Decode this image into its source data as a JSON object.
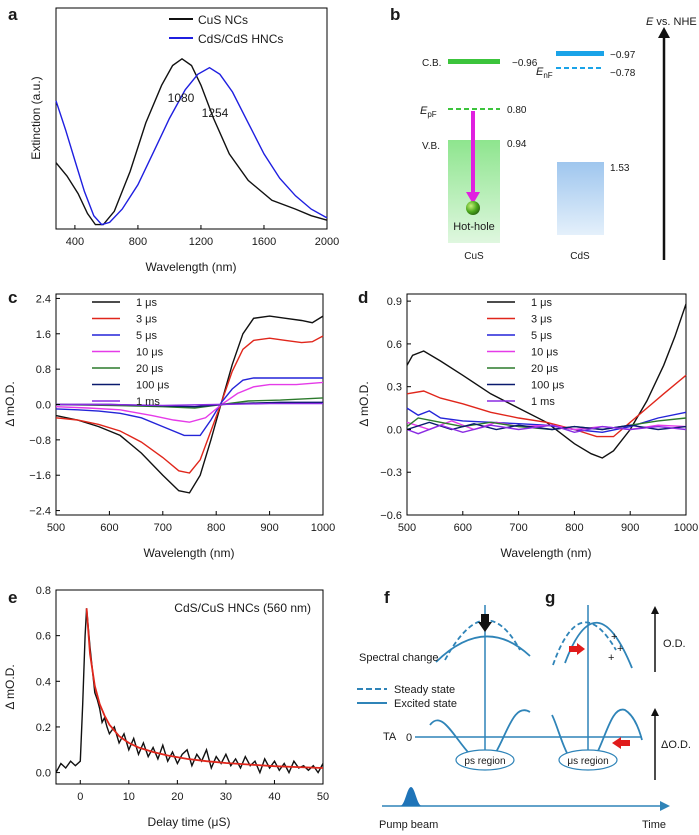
{
  "panels": {
    "a": {
      "letter": "a",
      "title": "",
      "xlabel": "Wavelength (nm)",
      "ylabel": "Extinction (a.u.)",
      "xticks": [
        "400",
        "800",
        "1200",
        "1600",
        "2000"
      ],
      "peak_labels": [
        "1080",
        "1254"
      ],
      "legend": [
        "CuS NCs",
        "CdS/CdS HNCs"
      ]
    },
    "b": {
      "letter": "b",
      "axis_label_italic": "E",
      "axis_label": " vs. NHE",
      "cb_label": "C.B.",
      "vb_label": "V.B.",
      "epf_label_main": "E",
      "epf_label_sub": "pF",
      "enf_label_main": "E",
      "enf_label_sub": "nF",
      "values": [
        "−0.96",
        "0.80",
        "0.94",
        "−0.97",
        "−0.78",
        "1.53"
      ],
      "hot_hole_label": "Hot-hole",
      "cus_label": "CuS",
      "cds_label": "CdS"
    },
    "c": {
      "letter": "c",
      "ylabel": "Δ mO.D.",
      "xlabel": "Wavelength (nm)",
      "yticks": [
        "2.4",
        "1.6",
        "0.8",
        "0.0",
        "−0.8",
        "−1.6",
        "−2.4"
      ],
      "xticks": [
        "500",
        "600",
        "700",
        "800",
        "900",
        "1000"
      ],
      "legend": [
        "1 μs",
        "3 μs",
        "5 μs",
        "10 μs",
        "20 μs",
        "100 μs",
        "1 ms"
      ]
    },
    "d": {
      "letter": "d",
      "ylabel": "Δ mO.D.",
      "xlabel": "Wavelength (nm)",
      "yticks": [
        "0.9",
        "0.6",
        "0.3",
        "0.0",
        "−0.3",
        "−0.6"
      ],
      "xticks": [
        "500",
        "600",
        "700",
        "800",
        "900",
        "1000"
      ],
      "legend": [
        "1 μs",
        "3 μs",
        "5 μs",
        "10 μs",
        "20 μs",
        "100 μs",
        "1 ms"
      ]
    },
    "e": {
      "letter": "e",
      "ylabel": "Δ mO.D.",
      "xlabel": "Delay time (μS)",
      "yticks": [
        "0.8",
        "0.6",
        "0.4",
        "0.2",
        "0.0"
      ],
      "xticks": [
        "0",
        "10",
        "20",
        "30",
        "40",
        "50"
      ],
      "annotation": "CdS/CuS HNCs (560 nm)"
    },
    "fg": {
      "letter_f": "f",
      "letter_g": "g",
      "spectral_change": "Spectral change",
      "steady_state": "Steady state",
      "excited_state": "Excited state",
      "ta_label": "TA",
      "ta_zero": "0",
      "ps_region": "ps region",
      "us_region": "μs region",
      "od_label": "O.D.",
      "delta_od_label": "ΔO.D.",
      "pump_beam": "Pump beam",
      "time_label": "Time"
    }
  },
  "colors": {
    "black": "#111111",
    "blue_a": "#1f1fe0",
    "red": "#e0261b",
    "blue": "#2424d8",
    "magenta": "#e53be8",
    "green": "#2c7a2c",
    "navy": "#0a1a6e",
    "purple": "#8a2be2",
    "cus_green": "#3cc43c",
    "cds_blue": "#1aa3e8",
    "diagram_blue": "#2f84b8"
  },
  "chart_data": [
    {
      "panel": "a",
      "type": "line",
      "title": "",
      "xlabel": "Wavelength (nm)",
      "ylabel": "Extinction (a.u.)",
      "xlim": [
        280,
        2000
      ],
      "ylim": [
        0,
        1.0
      ],
      "series": [
        {
          "name": "CuS NCs",
          "color": "#111111",
          "x": [
            280,
            350,
            420,
            480,
            530,
            580,
            650,
            750,
            850,
            950,
            1020,
            1080,
            1140,
            1200,
            1280,
            1380,
            1500,
            1650,
            1800,
            1900,
            2000
          ],
          "y": [
            0.3,
            0.24,
            0.16,
            0.07,
            0.02,
            0.02,
            0.08,
            0.26,
            0.48,
            0.65,
            0.74,
            0.77,
            0.74,
            0.65,
            0.5,
            0.34,
            0.22,
            0.13,
            0.09,
            0.06,
            0.04
          ]
        },
        {
          "name": "CdS/CdS HNCs",
          "color": "#1f1fe0",
          "x": [
            280,
            340,
            400,
            460,
            520,
            570,
            620,
            700,
            800,
            900,
            1000,
            1100,
            1180,
            1254,
            1320,
            1400,
            1500,
            1600,
            1700,
            1800,
            1900,
            2000
          ],
          "y": [
            0.58,
            0.45,
            0.31,
            0.17,
            0.06,
            0.02,
            0.03,
            0.09,
            0.2,
            0.35,
            0.5,
            0.63,
            0.7,
            0.73,
            0.7,
            0.62,
            0.48,
            0.34,
            0.23,
            0.15,
            0.09,
            0.05
          ]
        }
      ]
    },
    {
      "panel": "c",
      "type": "line",
      "xlabel": "Wavelength (nm)",
      "ylabel": "Δ mO.D.",
      "xlim": [
        500,
        1000
      ],
      "ylim": [
        -2.5,
        2.5
      ],
      "series": [
        {
          "name": "1 μs",
          "color": "#111111",
          "x": [
            500,
            540,
            580,
            620,
            660,
            700,
            730,
            750,
            770,
            790,
            810,
            830,
            850,
            870,
            900,
            930,
            960,
            980,
            1000
          ],
          "y": [
            -0.25,
            -0.35,
            -0.5,
            -0.7,
            -1.1,
            -1.6,
            -1.95,
            -2.0,
            -1.6,
            -0.8,
            0.05,
            0.9,
            1.6,
            1.95,
            2.0,
            1.95,
            1.9,
            1.85,
            2.0
          ]
        },
        {
          "name": "3 μs",
          "color": "#e0261b",
          "x": [
            500,
            540,
            580,
            620,
            660,
            700,
            730,
            750,
            770,
            790,
            810,
            830,
            850,
            870,
            900,
            930,
            960,
            980,
            1000
          ],
          "y": [
            -0.3,
            -0.35,
            -0.45,
            -0.6,
            -0.85,
            -1.2,
            -1.5,
            -1.55,
            -1.25,
            -0.6,
            0.05,
            0.75,
            1.25,
            1.45,
            1.5,
            1.45,
            1.4,
            1.42,
            1.55
          ]
        },
        {
          "name": "5 μs",
          "color": "#2424d8",
          "x": [
            500,
            540,
            580,
            620,
            660,
            700,
            740,
            770,
            790,
            810,
            830,
            850,
            870,
            900,
            950,
            1000
          ],
          "y": [
            -0.1,
            -0.12,
            -0.15,
            -0.2,
            -0.3,
            -0.5,
            -0.7,
            -0.7,
            -0.35,
            0.05,
            0.35,
            0.55,
            0.6,
            0.6,
            0.6,
            0.6
          ]
        },
        {
          "name": "10 μs",
          "color": "#e53be8",
          "x": [
            500,
            560,
            620,
            680,
            720,
            750,
            780,
            810,
            840,
            870,
            900,
            950,
            1000
          ],
          "y": [
            -0.05,
            -0.08,
            -0.12,
            -0.25,
            -0.35,
            -0.4,
            -0.3,
            0.0,
            0.25,
            0.4,
            0.45,
            0.45,
            0.5
          ]
        },
        {
          "name": "20 μs",
          "color": "#2c7a2c",
          "x": [
            500,
            600,
            700,
            760,
            810,
            860,
            920,
            1000
          ],
          "y": [
            0.0,
            -0.02,
            -0.05,
            -0.08,
            0.0,
            0.08,
            0.1,
            0.15
          ]
        },
        {
          "name": "100 μs",
          "color": "#0a1a6e",
          "x": [
            500,
            600,
            700,
            760,
            810,
            860,
            920,
            1000
          ],
          "y": [
            0.0,
            0.0,
            -0.03,
            -0.05,
            0.0,
            0.03,
            0.05,
            0.05
          ]
        },
        {
          "name": "1 ms",
          "color": "#8a2be2",
          "x": [
            500,
            600,
            700,
            800,
            900,
            1000
          ],
          "y": [
            0.0,
            0.0,
            -0.02,
            0.0,
            0.02,
            0.02
          ]
        }
      ]
    },
    {
      "panel": "d",
      "type": "line",
      "xlabel": "Wavelength (nm)",
      "ylabel": "Δ mO.D.",
      "xlim": [
        500,
        1000
      ],
      "ylim": [
        -0.6,
        0.95
      ],
      "series": [
        {
          "name": "1 μs",
          "color": "#111111",
          "x": [
            500,
            510,
            530,
            560,
            600,
            650,
            700,
            750,
            800,
            830,
            850,
            870,
            900,
            930,
            960,
            980,
            1000
          ],
          "y": [
            0.45,
            0.52,
            0.55,
            0.48,
            0.38,
            0.25,
            0.15,
            0.05,
            -0.1,
            -0.17,
            -0.2,
            -0.15,
            0.0,
            0.2,
            0.45,
            0.65,
            0.88
          ]
        },
        {
          "name": "3 μs",
          "color": "#e0261b",
          "x": [
            500,
            530,
            560,
            600,
            650,
            700,
            750,
            800,
            840,
            870,
            900,
            930,
            960,
            1000
          ],
          "y": [
            0.25,
            0.27,
            0.22,
            0.18,
            0.12,
            0.08,
            0.05,
            0.0,
            -0.05,
            -0.05,
            0.05,
            0.15,
            0.25,
            0.38
          ]
        },
        {
          "name": "5 μs",
          "color": "#2424d8",
          "x": [
            500,
            520,
            540,
            560,
            600,
            650,
            700,
            750,
            800,
            850,
            900,
            950,
            1000
          ],
          "y": [
            0.15,
            0.1,
            0.13,
            0.08,
            0.06,
            0.05,
            0.04,
            0.03,
            0.0,
            -0.02,
            0.02,
            0.08,
            0.12
          ]
        },
        {
          "name": "10 μs",
          "color": "#e53be8",
          "x": [
            500,
            540,
            580,
            620,
            660,
            700,
            760,
            800,
            850,
            900,
            950,
            1000
          ],
          "y": [
            0.05,
            0.0,
            0.06,
            0.0,
            0.05,
            0.02,
            0.03,
            0.0,
            0.02,
            0.0,
            0.03,
            0.02
          ]
        },
        {
          "name": "20 μs",
          "color": "#2c7a2c",
          "x": [
            500,
            520,
            560,
            600,
            650,
            700,
            760,
            800,
            850,
            900,
            950,
            1000
          ],
          "y": [
            0.02,
            0.08,
            0.05,
            0.02,
            0.05,
            0.02,
            0.0,
            0.02,
            0.0,
            0.03,
            0.06,
            0.08
          ]
        },
        {
          "name": "100 μs",
          "color": "#0a1a6e",
          "x": [
            500,
            540,
            580,
            620,
            660,
            700,
            760,
            800,
            850,
            900,
            950,
            1000
          ],
          "y": [
            0.0,
            0.05,
            0.0,
            0.04,
            0.0,
            0.03,
            0.0,
            0.02,
            0.0,
            0.03,
            0.0,
            0.02
          ]
        },
        {
          "name": "1 ms",
          "color": "#8a2be2",
          "x": [
            500,
            520,
            560,
            600,
            650,
            700,
            760,
            800,
            850,
            900,
            950,
            1000
          ],
          "y": [
            0.0,
            -0.03,
            0.03,
            -0.02,
            0.03,
            0.0,
            0.03,
            -0.02,
            0.02,
            0.0,
            0.02,
            0.0
          ]
        }
      ]
    },
    {
      "panel": "e",
      "type": "line",
      "xlabel": "Delay time (μS)",
      "ylabel": "Δ mO.D.",
      "xlim": [
        -5,
        50
      ],
      "ylim": [
        -0.05,
        0.8
      ],
      "series": [
        {
          "name": "data",
          "color": "#111111",
          "x": [
            -5,
            -4,
            -3,
            -2,
            -1,
            0,
            0.5,
            1,
            1.3,
            2,
            2.5,
            3,
            3.5,
            4,
            4.5,
            5,
            5.5,
            6,
            7,
            8,
            9,
            10,
            11,
            12,
            13,
            14,
            15,
            16,
            17,
            18,
            19,
            20,
            21,
            22,
            23,
            24,
            25,
            26,
            27,
            28,
            29,
            30,
            31,
            32,
            33,
            34,
            35,
            36,
            37,
            38,
            39,
            40,
            41,
            42,
            43,
            44,
            45,
            46,
            47,
            48,
            49,
            50
          ],
          "y": [
            0.0,
            0.04,
            0.02,
            0.05,
            0.03,
            0.05,
            0.3,
            0.6,
            0.72,
            0.55,
            0.45,
            0.35,
            0.32,
            0.28,
            0.22,
            0.24,
            0.2,
            0.17,
            0.2,
            0.13,
            0.17,
            0.1,
            0.15,
            0.08,
            0.13,
            0.07,
            0.11,
            0.06,
            0.12,
            0.05,
            0.09,
            0.04,
            0.08,
            0.1,
            0.03,
            0.08,
            0.05,
            0.1,
            0.02,
            0.07,
            0.04,
            0.08,
            0.03,
            0.06,
            0.02,
            0.07,
            0.03,
            0.05,
            0.0,
            0.06,
            0.02,
            0.05,
            0.01,
            0.04,
            0.0,
            0.05,
            0.02,
            0.03,
            0.01,
            0.03,
            0.0,
            0.04
          ]
        },
        {
          "name": "fit",
          "color": "#e0261b",
          "x": [
            1.3,
            2,
            3,
            4,
            5,
            6,
            8,
            10,
            12,
            15,
            18,
            22,
            26,
            30,
            35,
            40,
            45,
            50
          ],
          "y": [
            0.72,
            0.52,
            0.38,
            0.3,
            0.25,
            0.21,
            0.16,
            0.13,
            0.11,
            0.09,
            0.075,
            0.06,
            0.05,
            0.042,
            0.035,
            0.028,
            0.024,
            0.02
          ]
        }
      ]
    }
  ]
}
